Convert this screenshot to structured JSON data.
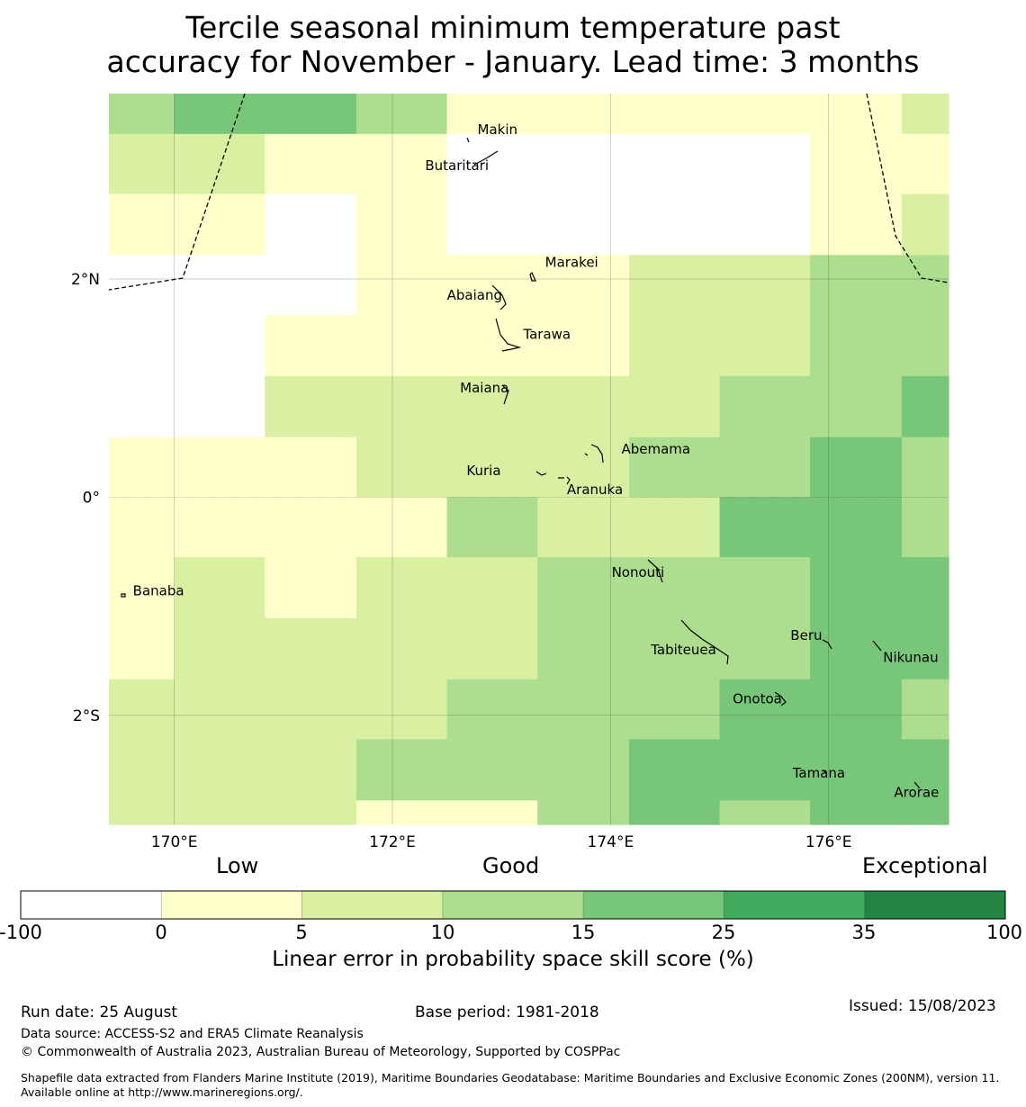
{
  "title": {
    "line1": "Tercile seasonal minimum temperature past",
    "line2": "accuracy for November - January. Lead time: 3 months"
  },
  "map": {
    "lon_range": [
      169.4,
      177.1
    ],
    "lat_range": [
      -3.0,
      3.7
    ],
    "x_ticks": [
      {
        "lon": 170,
        "label": "170°E"
      },
      {
        "lon": 172,
        "label": "172°E"
      },
      {
        "lon": 174,
        "label": "174°E"
      },
      {
        "lon": 176,
        "label": "176°E"
      }
    ],
    "y_ticks": [
      {
        "lat": 2,
        "label": "2°N"
      },
      {
        "lat": 0,
        "label": "0°"
      },
      {
        "lat": -2,
        "label": "2°S"
      }
    ],
    "cell_lon_edges": [
      169.4,
      170.0,
      170.83,
      171.67,
      172.5,
      173.33,
      174.17,
      175.0,
      175.83,
      176.67,
      177.1
    ],
    "cell_lat_edges": [
      3.7,
      3.33,
      2.78,
      2.22,
      1.67,
      1.11,
      0.55,
      0.0,
      -0.55,
      -1.11,
      -1.67,
      -2.22,
      -2.78,
      -3.0
    ],
    "grid_class": [
      [
        3,
        4,
        4,
        3,
        1,
        1,
        1,
        1,
        1,
        2
      ],
      [
        2,
        2,
        1,
        1,
        0,
        0,
        0,
        0,
        1,
        1
      ],
      [
        1,
        1,
        0,
        1,
        0,
        0,
        0,
        0,
        1,
        2
      ],
      [
        0,
        0,
        0,
        1,
        1,
        1,
        2,
        2,
        3,
        3
      ],
      [
        0,
        0,
        1,
        1,
        1,
        1,
        2,
        2,
        3,
        3
      ],
      [
        0,
        0,
        2,
        2,
        2,
        2,
        2,
        3,
        3,
        4
      ],
      [
        1,
        1,
        1,
        2,
        2,
        2,
        3,
        3,
        4,
        3
      ],
      [
        1,
        1,
        1,
        1,
        3,
        2,
        2,
        4,
        4,
        3
      ],
      [
        1,
        2,
        1,
        2,
        2,
        3,
        3,
        3,
        4,
        4
      ],
      [
        1,
        2,
        2,
        2,
        2,
        3,
        3,
        3,
        4,
        4
      ],
      [
        2,
        2,
        2,
        2,
        3,
        3,
        3,
        4,
        4,
        3
      ],
      [
        2,
        2,
        2,
        3,
        3,
        3,
        4,
        4,
        4,
        4
      ],
      [
        2,
        2,
        2,
        1,
        1,
        3,
        4,
        3,
        4,
        4
      ]
    ],
    "places": [
      {
        "name": "Makin",
        "lon": 172.78,
        "lat": 3.33
      },
      {
        "name": "Butaritari",
        "lon": 172.3,
        "lat": 3.0
      },
      {
        "name": "Marakei",
        "lon": 173.4,
        "lat": 2.11
      },
      {
        "name": "Abaiang",
        "lon": 172.5,
        "lat": 1.81
      },
      {
        "name": "Tarawa",
        "lon": 173.2,
        "lat": 1.45
      },
      {
        "name": "Maiana",
        "lon": 172.62,
        "lat": 0.96
      },
      {
        "name": "Abemama",
        "lon": 174.1,
        "lat": 0.4
      },
      {
        "name": "Kuria",
        "lon": 172.68,
        "lat": 0.2
      },
      {
        "name": "Aranuka",
        "lon": 173.6,
        "lat": 0.03
      },
      {
        "name": "Nonouti",
        "lon": 174.01,
        "lat": -0.73
      },
      {
        "name": "Banaba",
        "lon": 169.62,
        "lat": -0.9
      },
      {
        "name": "Beru",
        "lon": 175.65,
        "lat": -1.31
      },
      {
        "name": "Tabiteuea",
        "lon": 174.37,
        "lat": -1.44
      },
      {
        "name": "Nikunau",
        "lon": 176.5,
        "lat": -1.51
      },
      {
        "name": "Onotoa",
        "lon": 175.12,
        "lat": -1.89
      },
      {
        "name": "Tamana",
        "lon": 175.67,
        "lat": -2.57
      },
      {
        "name": "Arorae",
        "lon": 176.6,
        "lat": -2.75
      }
    ]
  },
  "colorbar": {
    "categories": [
      {
        "word": "Low"
      },
      {
        "word": "Good"
      },
      {
        "word": "Exceptional"
      }
    ],
    "bounds": [
      "-100",
      "0",
      "5",
      "10",
      "15",
      "25",
      "35",
      "100"
    ],
    "colors": [
      "#ffffff",
      "#ffffcc",
      "#d9f0a3",
      "#addd8e",
      "#78c679",
      "#41ab5d",
      "#238443"
    ],
    "label": "Linear error in probability space skill score (%)"
  },
  "footer": {
    "run_date": "Run date: 25 August",
    "base_period": "Base period: 1981-2018",
    "issued": "Issued: 15/08/2023",
    "data_source": "Data source: ACCESS-S2 and ERA5 Climate Reanalysis",
    "copyright": "© Commonwealth of Australia 2023, Australian Bureau of Meteorology, Supported by COSPPac",
    "shapefile": "Shapefile data extracted from Flanders Marine Institute (2019), Maritime Boundaries Geodatabase: Maritime Boundaries and Exclusive Economic Zones (200NM), version 11. Available online at http://www.marineregions.org/."
  }
}
